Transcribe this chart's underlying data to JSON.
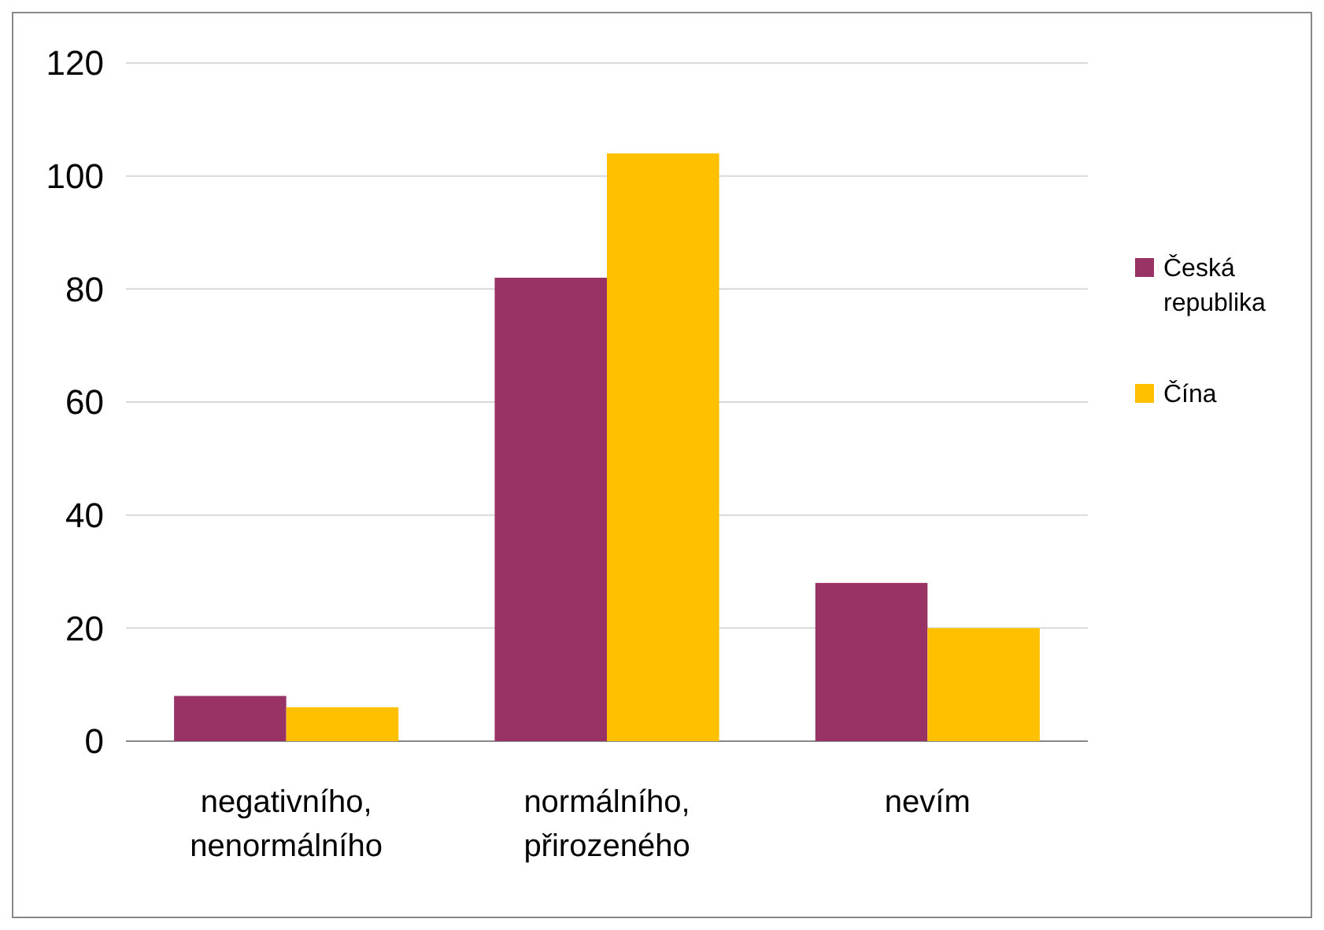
{
  "chart_data": {
    "type": "bar",
    "categories": [
      "negativního, nenormálního",
      "normálního, přirozeného",
      "nevím"
    ],
    "series": [
      {
        "name": "Česká republika",
        "color": "#993366",
        "values": [
          8,
          82,
          28
        ]
      },
      {
        "name": "Čína",
        "color": "#ffc000",
        "values": [
          6,
          104,
          20
        ]
      }
    ],
    "ylim": [
      0,
      120
    ],
    "yticks": [
      0,
      20,
      40,
      60,
      80,
      100,
      120
    ],
    "grid": "y",
    "legend": "right"
  }
}
